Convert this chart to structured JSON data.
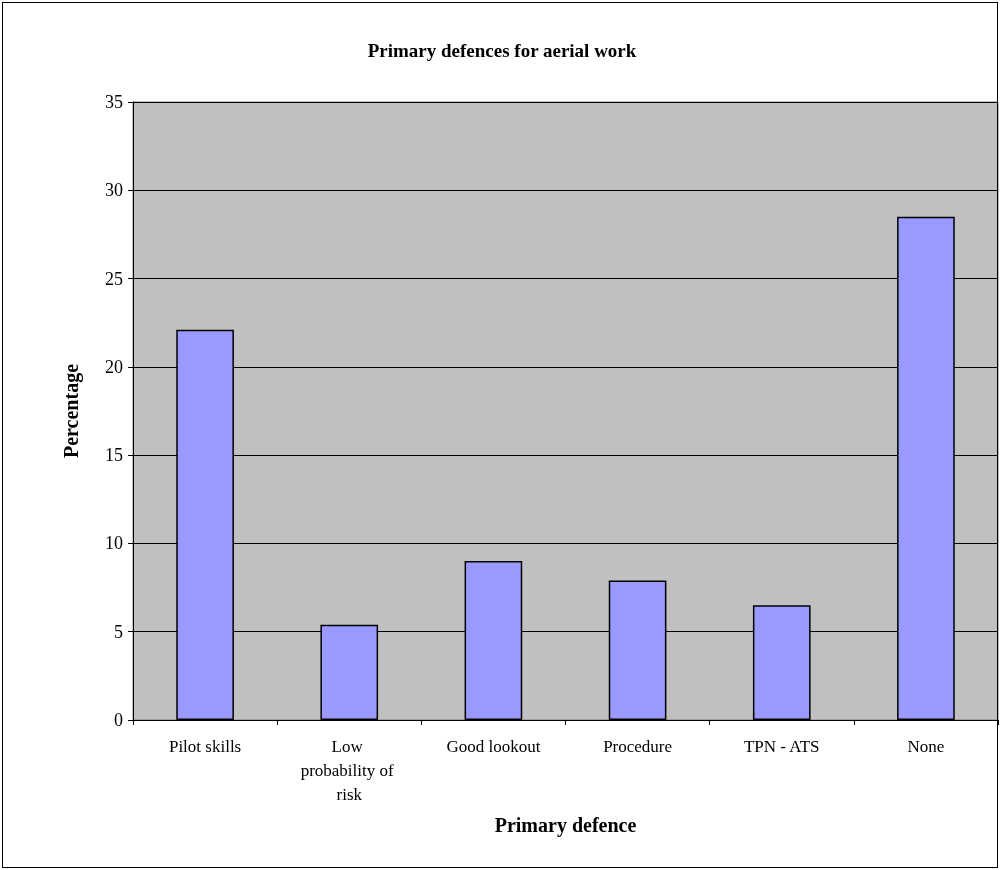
{
  "chart_data": {
    "type": "bar",
    "title": "Primary defences for aerial work",
    "xlabel": "Primary defence",
    "ylabel": "Percentage",
    "categories": [
      "Pilot skills",
      "Low probability of risk",
      "Good lookout",
      "Procedure",
      "TPN - ATS",
      "None"
    ],
    "values": [
      22.1,
      5.4,
      9.0,
      7.9,
      6.5,
      28.5
    ],
    "color": "#9999ff",
    "ylim": [
      0,
      35
    ],
    "yticks": [
      0,
      5,
      10,
      15,
      20,
      25,
      30,
      35
    ],
    "grid": "y"
  }
}
